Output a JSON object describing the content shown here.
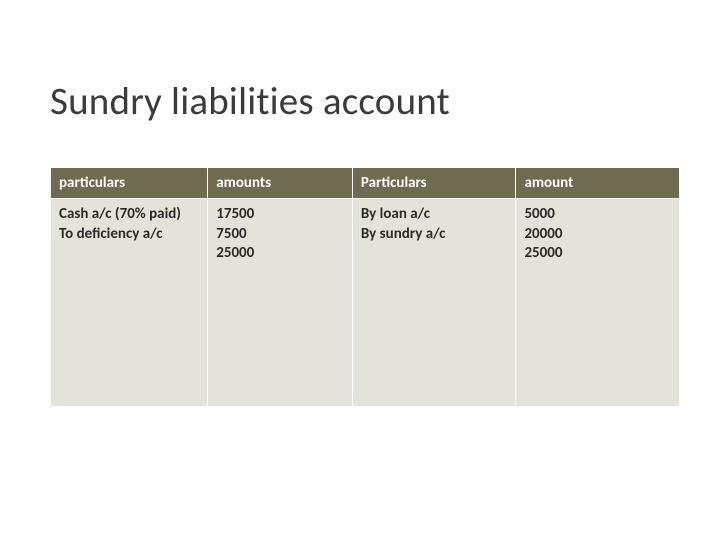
{
  "title": "Sundry liabilities account",
  "table": {
    "type": "table",
    "header_bg": "#6e6b51",
    "header_fg": "#ffffff",
    "cell_bg": "#e4e3da",
    "cell_fg": "#2a2a2a",
    "border_color": "#ffffff",
    "font_family": "Calibri",
    "header_fontsize": 15,
    "cell_fontsize": 15,
    "columns": [
      {
        "key": "particulars_left",
        "label": "particulars",
        "width_pct": 25,
        "align": "left"
      },
      {
        "key": "amounts_left",
        "label": "amounts",
        "width_pct": 23,
        "align": "left"
      },
      {
        "key": "particulars_right",
        "label": "Particulars",
        "width_pct": 26,
        "align": "left"
      },
      {
        "key": "amount_right",
        "label": "amount",
        "width_pct": 26,
        "align": "left"
      }
    ],
    "rows": [
      {
        "particulars_left": "Cash a/c (70% paid)\nTo deficiency a/c",
        "amounts_left": "17500\n7500\n25000",
        "particulars_right": "By loan a/c\nBy sundry a/c",
        "amount_right": "5000\n20000\n25000"
      }
    ]
  }
}
